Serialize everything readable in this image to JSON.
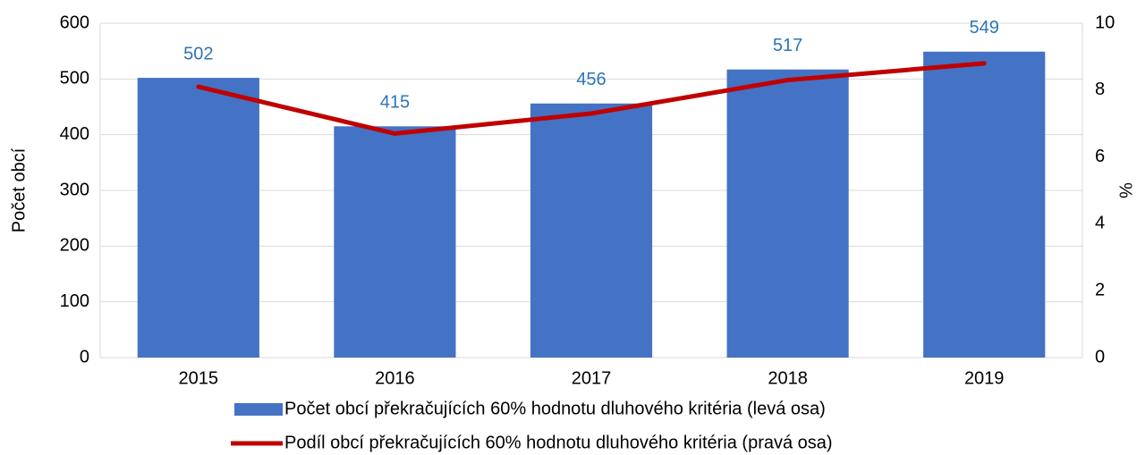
{
  "chart_data": {
    "type": "bar",
    "categories": [
      "2015",
      "2016",
      "2017",
      "2018",
      "2019"
    ],
    "series": [
      {
        "name": "Počet obcí překračujících 60% hodnotu dluhového kritéria (levá osa)",
        "type": "bar",
        "color": "#4472c4",
        "values": [
          502,
          415,
          456,
          517,
          549
        ]
      },
      {
        "name": "Podíl obcí překračujících 60% hodnotu dluhového kritéria (pravá osa)",
        "type": "line",
        "axis": "y2",
        "color": "#c00000",
        "values": [
          8.1,
          6.7,
          7.3,
          8.3,
          8.8
        ]
      }
    ],
    "ylabel": "Počet obcí",
    "y2label": "%",
    "ylim": [
      0,
      600
    ],
    "yticks": [
      0,
      100,
      200,
      300,
      400,
      500,
      600
    ],
    "y2lim": [
      0,
      10
    ],
    "y2ticks": [
      0,
      2,
      4,
      6,
      8,
      10
    ],
    "grid": true,
    "data_label_color": "#2e75b6",
    "legend": "bottom"
  }
}
